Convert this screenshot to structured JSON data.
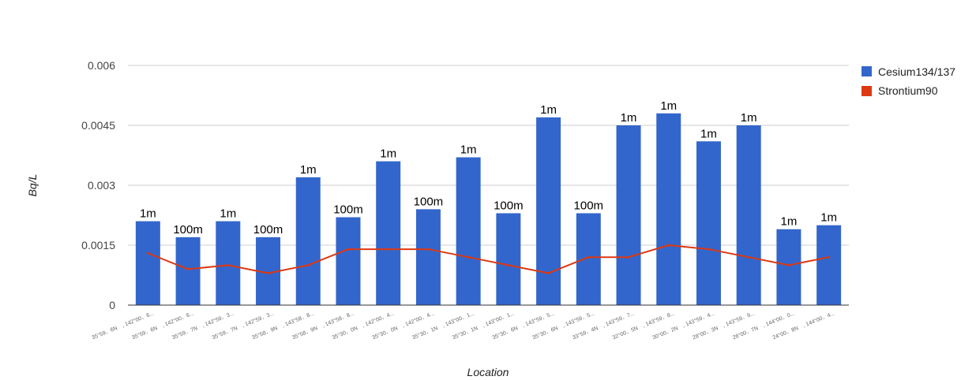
{
  "chart_data": {
    "type": "bar",
    "title": "",
    "xlabel": "Location",
    "ylabel": "Bq/L",
    "ylim": [
      0,
      0.006
    ],
    "yticks": [
      "0",
      "0.0015",
      "0.003",
      "0.0045",
      "0.006"
    ],
    "grid": true,
    "legend_position": "right",
    "categories": [
      "35°59．6N　, 142°00．6...",
      "35°59．6N　, 142°00．6...",
      "35°59．7N　, 142°59．3...",
      "35°59．7N　, 142°59．3...",
      "35°58．9N　, 143°58．8...",
      "35°58．9N　, 143°58．8...",
      "35°30．0N　, 142°00．4...",
      "35°30．0N　, 142°00．4...",
      "35°30．1N　, 143°00．1...",
      "35°30．1N　, 143°00．1...",
      "35°30．6N　, 143°59．5...",
      "35°30．6N　, 143°59．5...",
      "33°59．4N　, 143°59．7...",
      "32°00．5N　, 143°59．8...",
      "30°00．2N　, 143°59．4...",
      "28°00．3N　, 143°59．9...",
      "26°00．7N　, 144°00．0...",
      "24°00．8N　, 144°00．4..."
    ],
    "series": [
      {
        "name": "Cesium134/137",
        "type": "bar",
        "color": "#3366cc",
        "values": [
          0.0021,
          0.0017,
          0.0021,
          0.0017,
          0.0032,
          0.0022,
          0.0036,
          0.0024,
          0.0037,
          0.0023,
          0.0047,
          0.0023,
          0.0045,
          0.0048,
          0.0041,
          0.0045,
          0.0019,
          0.002
        ],
        "labels": [
          "1m",
          "100m",
          "1m",
          "100m",
          "1m",
          "100m",
          "1m",
          "100m",
          "1m",
          "100m",
          "1m",
          "100m",
          "1m",
          "1m",
          "1m",
          "1m",
          "1m",
          "1m"
        ]
      },
      {
        "name": "Strontium90",
        "type": "line",
        "color": "#dc3912",
        "values": [
          0.0013,
          0.0009,
          0.001,
          0.0008,
          0.001,
          0.0014,
          0.0014,
          0.0014,
          0.0012,
          0.001,
          0.0008,
          0.0012,
          0.0012,
          0.0015,
          0.0014,
          0.0012,
          0.001,
          0.0012
        ]
      }
    ]
  }
}
